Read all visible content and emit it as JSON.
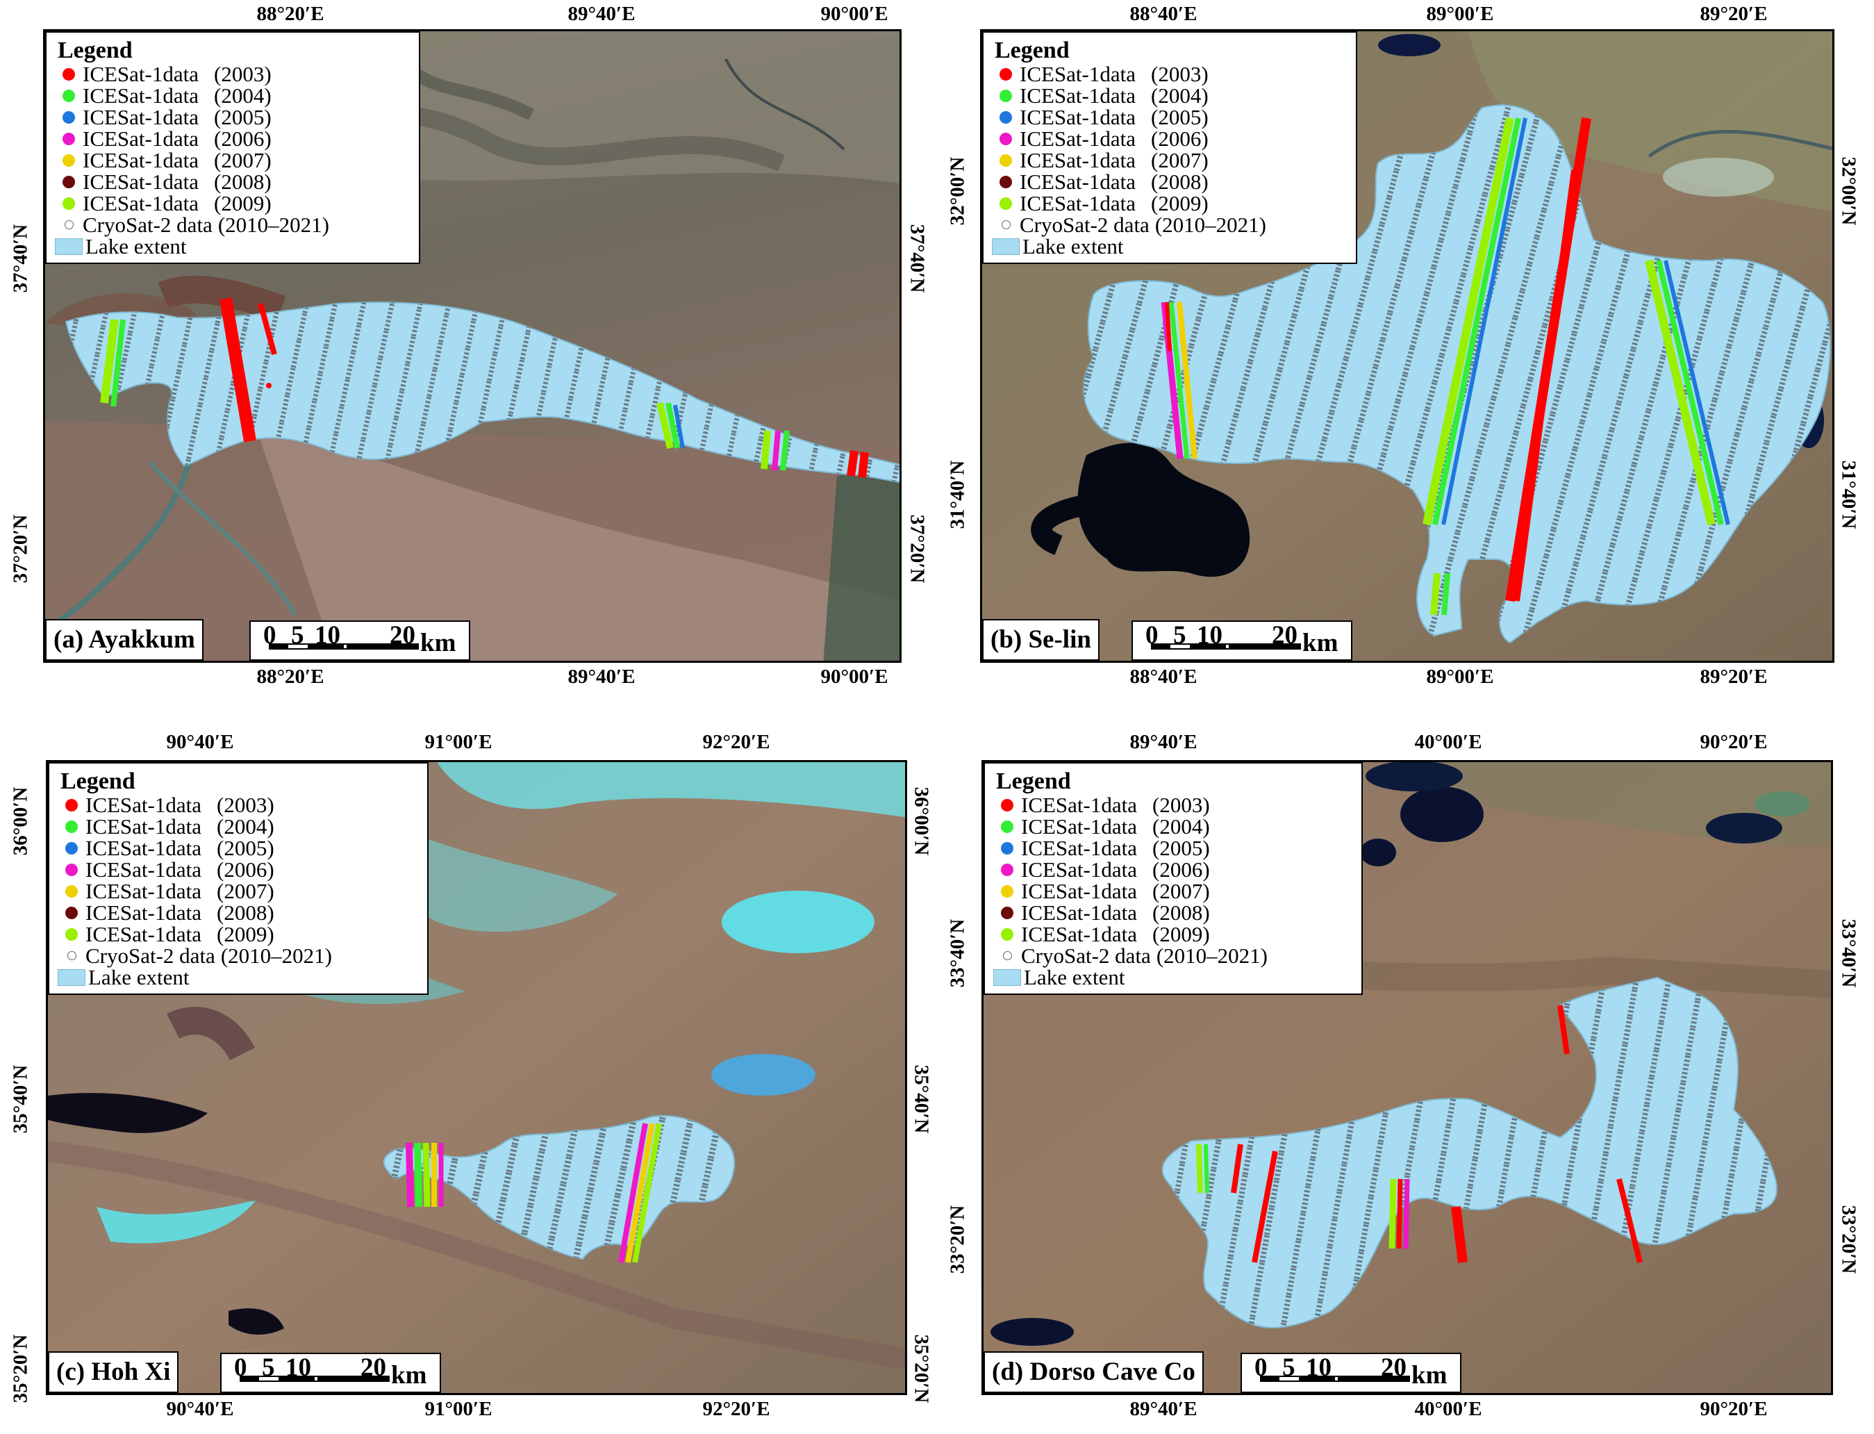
{
  "legend": {
    "title": "Legend",
    "items": [
      {
        "name": "ICESat-1data",
        "year": "(2003)",
        "color": "#ff0000",
        "symbol": "dot"
      },
      {
        "name": "ICESat-1data",
        "year": "(2004)",
        "color": "#33ee33",
        "symbol": "dot"
      },
      {
        "name": "ICESat-1data",
        "year": "(2005)",
        "color": "#1e77dd",
        "symbol": "dot"
      },
      {
        "name": "ICESat-1data",
        "year": "(2006)",
        "color": "#ee18c8",
        "symbol": "dot"
      },
      {
        "name": "ICESat-1data",
        "year": "(2007)",
        "color": "#f0d000",
        "symbol": "dot"
      },
      {
        "name": "ICESat-1data",
        "year": "(2008)",
        "color": "#6b0a0a",
        "symbol": "dot"
      },
      {
        "name": "ICESat-1data",
        "year": "(2009)",
        "color": "#99f000",
        "symbol": "dot"
      },
      {
        "name": "CryoSat-2 data",
        "year": "(2010–2021)",
        "color": "#777777",
        "symbol": "ring"
      },
      {
        "name": "Lake extent",
        "year": "",
        "color": "#a8dcf2",
        "symbol": "box"
      }
    ]
  },
  "scale": {
    "ticks": [
      "0",
      "5",
      "10",
      "20"
    ],
    "unit": "km"
  },
  "panels": [
    {
      "name": "(a) Ayakkum",
      "x_ticks": [
        "88°20′E",
        "89°40′E",
        "90°00′E"
      ],
      "y_ticks": [
        "37°40′N",
        "37°20′N"
      ]
    },
    {
      "name": "(b) Se-lin",
      "x_ticks": [
        "88°40′E",
        "89°00′E",
        "89°20′E"
      ],
      "y_ticks": [
        "32°00′N",
        "31°40′N"
      ]
    },
    {
      "name": "(c) Hoh Xi",
      "x_ticks": [
        "90°40′E",
        "91°00′E",
        "92°20′E"
      ],
      "y_ticks": [
        "36°00′N",
        "35°40′N",
        "35°20′N"
      ]
    },
    {
      "name": "(d) Dorso Cave Co",
      "x_ticks": [
        "89°40′E",
        "40°00′E",
        "90°20′E"
      ],
      "y_ticks": [
        "33°40′N",
        "33°20′N"
      ]
    }
  ]
}
